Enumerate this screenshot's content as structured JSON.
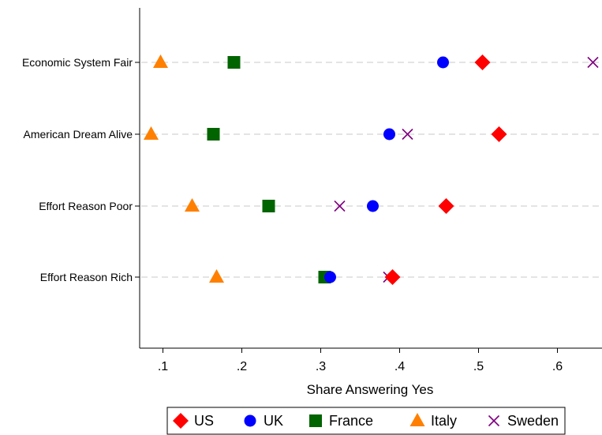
{
  "chart_data": {
    "type": "scatter",
    "title": "",
    "xlabel": "Share Answering Yes",
    "ylabel": "",
    "xlim": [
      0.08,
      0.655
    ],
    "x_ticks": [
      0.1,
      0.2,
      0.3,
      0.4,
      0.5,
      0.6
    ],
    "x_tick_labels": [
      ".1",
      ".2",
      ".3",
      ".4",
      ".5",
      ".6"
    ],
    "categories": [
      "Economic System Fair",
      "American Dream Alive",
      "Effort Reason Poor",
      "Effort Reason Rich"
    ],
    "grid": "dashed horizontal lines at categories",
    "legend_position": "bottom",
    "series": [
      {
        "name": "US",
        "marker": "diamond",
        "color": "#ff0000",
        "values": [
          0.505,
          0.526,
          0.459,
          0.391
        ]
      },
      {
        "name": "UK",
        "marker": "circle",
        "color": "#0000ff",
        "values": [
          0.455,
          0.387,
          0.366,
          0.312
        ]
      },
      {
        "name": "France",
        "marker": "square",
        "color": "#006400",
        "values": [
          0.19,
          0.164,
          0.234,
          0.305
        ]
      },
      {
        "name": "Italy",
        "marker": "triangle",
        "color": "#ff8000",
        "values": [
          0.097,
          0.085,
          0.137,
          0.168
        ]
      },
      {
        "name": "Sweden",
        "marker": "x",
        "color": "#800080",
        "values": [
          0.645,
          0.41,
          0.324,
          0.386
        ]
      }
    ]
  }
}
